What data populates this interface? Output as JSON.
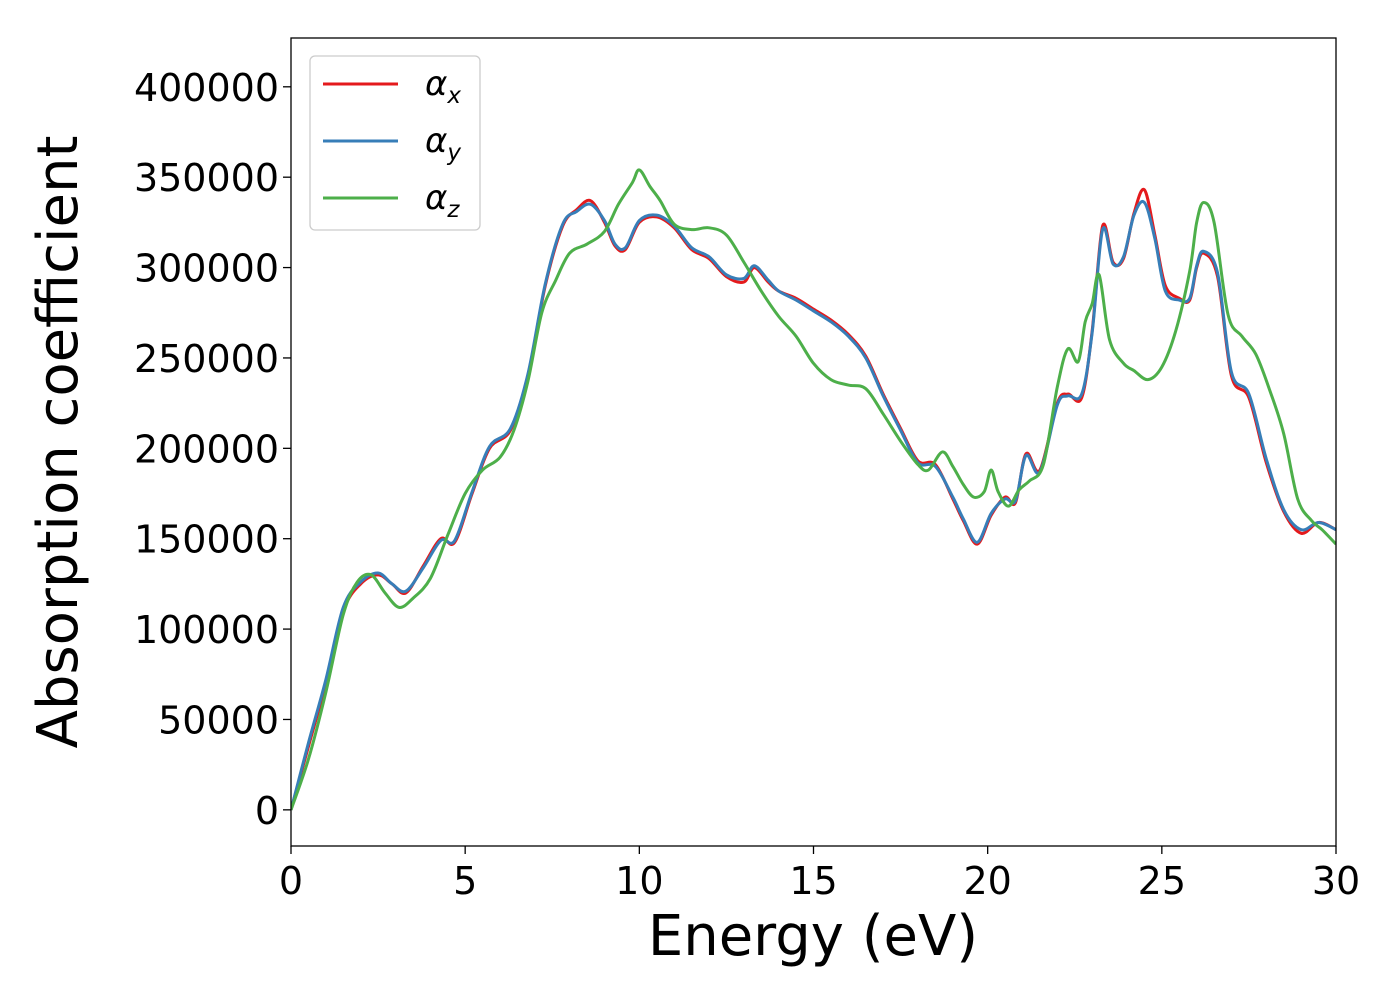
{
  "chart_data": {
    "type": "line",
    "title": "",
    "xlabel": "Energy (eV)",
    "ylabel": "Absorption coefficient",
    "xlim": [
      0,
      30
    ],
    "ylim": [
      -20000,
      427000
    ],
    "xticks": [
      0,
      5,
      10,
      15,
      20,
      25,
      30
    ],
    "xtick_labels": [
      "0",
      "5",
      "10",
      "15",
      "20",
      "25",
      "30"
    ],
    "yticks": [
      0,
      50000,
      100000,
      150000,
      200000,
      250000,
      300000,
      350000,
      400000
    ],
    "ytick_labels": [
      "0",
      "50000",
      "100000",
      "150000",
      "200000",
      "250000",
      "300000",
      "350000",
      "400000"
    ],
    "grid": false,
    "legend_position": "top-left",
    "series": [
      {
        "name": "α_x",
        "symbol": "α",
        "subscript": "x",
        "color": "#e41a1c",
        "x": [
          0,
          0.5,
          1,
          1.5,
          2,
          2.5,
          2.9,
          3.3,
          3.8,
          4.3,
          4.7,
          5.2,
          5.7,
          6.3,
          6.8,
          7.3,
          7.8,
          8.2,
          8.6,
          9.0,
          9.3,
          9.6,
          10.0,
          10.5,
          11.0,
          11.5,
          12.0,
          12.5,
          13.0,
          13.3,
          13.7,
          14.0,
          14.5,
          15.0,
          15.5,
          16.0,
          16.5,
          17.0,
          17.5,
          18.0,
          18.5,
          19.0,
          19.3,
          19.7,
          20.1,
          20.5,
          20.8,
          21.1,
          21.5,
          22.0,
          22.3,
          22.7,
          23.0,
          23.3,
          23.6,
          23.9,
          24.2,
          24.5,
          24.8,
          25.1,
          25.5,
          25.8,
          26.0,
          26.2,
          26.6,
          27.0,
          27.5,
          28.0,
          28.5,
          29.0,
          29.5,
          30.0
        ],
        "y": [
          0,
          35000,
          70000,
          110000,
          125000,
          130000,
          125000,
          120000,
          135000,
          150000,
          148000,
          175000,
          200000,
          210000,
          240000,
          290000,
          323000,
          332000,
          337000,
          325000,
          312000,
          310000,
          325000,
          328000,
          322000,
          310000,
          305000,
          295000,
          292000,
          300000,
          292000,
          287000,
          283000,
          277000,
          271000,
          263000,
          251000,
          230000,
          211000,
          193000,
          191000,
          172000,
          160000,
          147000,
          163000,
          173000,
          170000,
          197000,
          188000,
          225000,
          230000,
          228000,
          265000,
          323000,
          303000,
          305000,
          330000,
          343000,
          318000,
          290000,
          283000,
          282000,
          300000,
          308000,
          295000,
          240000,
          228000,
          192000,
          165000,
          153000,
          159000,
          155000
        ]
      },
      {
        "name": "α_y",
        "symbol": "α",
        "subscript": "y",
        "color": "#377eb8",
        "x": [
          0,
          0.5,
          1,
          1.5,
          2,
          2.5,
          2.9,
          3.3,
          3.8,
          4.3,
          4.7,
          5.2,
          5.7,
          6.3,
          6.8,
          7.3,
          7.8,
          8.2,
          8.6,
          9.0,
          9.3,
          9.6,
          10.0,
          10.5,
          11.0,
          11.5,
          12.0,
          12.5,
          13.0,
          13.3,
          13.7,
          14.0,
          14.5,
          15.0,
          15.5,
          16.0,
          16.5,
          17.0,
          17.5,
          18.0,
          18.5,
          19.0,
          19.3,
          19.7,
          20.1,
          20.5,
          20.8,
          21.1,
          21.5,
          22.0,
          22.3,
          22.7,
          23.0,
          23.3,
          23.6,
          23.9,
          24.2,
          24.5,
          24.8,
          25.1,
          25.5,
          25.8,
          26.0,
          26.2,
          26.6,
          27.0,
          27.5,
          28.0,
          28.5,
          29.0,
          29.5,
          30.0
        ],
        "y": [
          0,
          37000,
          72000,
          112000,
          126000,
          131000,
          125000,
          121000,
          134000,
          149000,
          149000,
          176000,
          201000,
          211000,
          241000,
          291000,
          324000,
          331000,
          335000,
          326000,
          313000,
          311000,
          326000,
          329000,
          323000,
          311000,
          306000,
          296000,
          294000,
          301000,
          293000,
          287000,
          282000,
          276000,
          270000,
          262000,
          250000,
          229000,
          210000,
          192000,
          190000,
          173000,
          161000,
          148000,
          164000,
          172000,
          171000,
          196000,
          187000,
          224000,
          229000,
          230000,
          264000,
          321000,
          302000,
          306000,
          329000,
          336000,
          316000,
          287000,
          282000,
          283000,
          301000,
          309000,
          297000,
          242000,
          230000,
          194000,
          166000,
          155000,
          159000,
          155000
        ]
      },
      {
        "name": "α_z",
        "symbol": "α",
        "subscript": "z",
        "color": "#4daf4a",
        "x": [
          0,
          0.5,
          1,
          1.5,
          1.9,
          2.3,
          2.7,
          3.1,
          3.5,
          4.0,
          4.5,
          5.0,
          5.5,
          6.0,
          6.4,
          6.8,
          7.2,
          7.6,
          8.0,
          8.5,
          9.0,
          9.4,
          9.8,
          10.0,
          10.3,
          10.6,
          11.0,
          11.5,
          12.0,
          12.5,
          13.0,
          13.5,
          14.0,
          14.5,
          15.0,
          15.5,
          16.0,
          16.5,
          17.0,
          17.5,
          18.0,
          18.3,
          18.7,
          19.0,
          19.3,
          19.6,
          19.9,
          20.1,
          20.3,
          20.6,
          20.9,
          21.2,
          21.6,
          22.0,
          22.3,
          22.6,
          22.8,
          23.0,
          23.2,
          23.5,
          23.9,
          24.2,
          24.6,
          25.0,
          25.4,
          25.8,
          26.0,
          26.2,
          26.5,
          26.9,
          27.3,
          27.7,
          28.1,
          28.5,
          28.9,
          29.3,
          29.6,
          30.0
        ],
        "y": [
          0,
          28000,
          65000,
          108000,
          126000,
          130000,
          120000,
          112000,
          117000,
          128000,
          152000,
          175000,
          188000,
          195000,
          210000,
          237000,
          275000,
          293000,
          308000,
          313000,
          320000,
          335000,
          347000,
          354000,
          345000,
          337000,
          324000,
          321000,
          322000,
          318000,
          303000,
          287000,
          273000,
          262000,
          247000,
          238000,
          235000,
          233000,
          219000,
          204000,
          191000,
          188000,
          198000,
          190000,
          180000,
          173000,
          176000,
          188000,
          176000,
          168000,
          177000,
          182000,
          191000,
          234000,
          255000,
          248000,
          270000,
          280000,
          296000,
          260000,
          247000,
          243000,
          238000,
          245000,
          265000,
          298000,
          325000,
          336000,
          325000,
          274000,
          262000,
          252000,
          232000,
          208000,
          172000,
          160000,
          155000,
          147000
        ]
      }
    ]
  }
}
